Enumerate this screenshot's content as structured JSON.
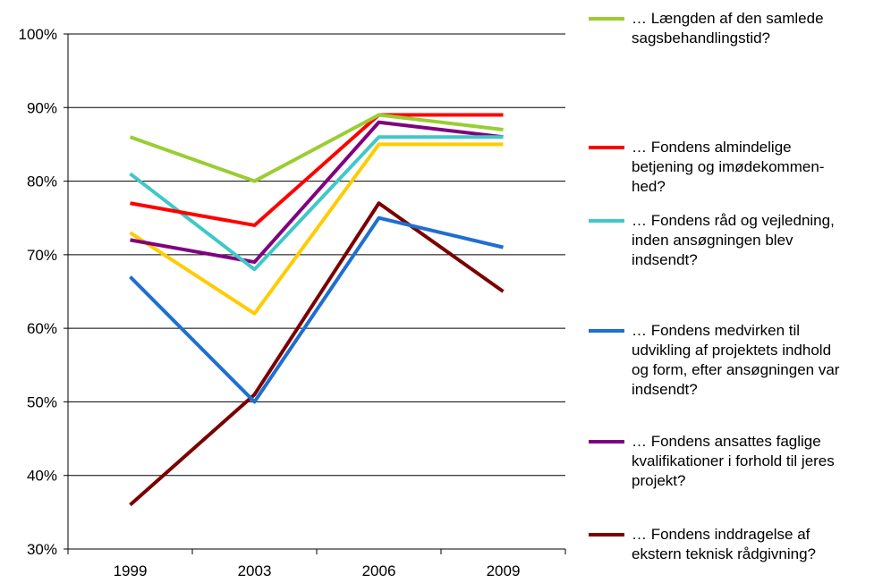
{
  "chart_data": {
    "type": "line",
    "categories": [
      "1999",
      "2003",
      "2006",
      "2009"
    ],
    "ylim": [
      30,
      100
    ],
    "yticks": [
      "30%",
      "40%",
      "50%",
      "60%",
      "70%",
      "80%",
      "90%",
      "100%"
    ],
    "grid": true,
    "legend_position": "right",
    "series": [
      {
        "name": "… Længden af den samlede\nsagsbehandlingstid?",
        "color": "#9acd32",
        "values": [
          86,
          80,
          89,
          87
        ]
      },
      {
        "name": "… Fondens almindelige\nbetjening og imødekommen-\nhed?",
        "color": "#ff0000",
        "values": [
          77,
          74,
          89,
          89
        ]
      },
      {
        "name": "… Fondens råd og vejledning,\ninden ansøgningen blev\nindsendt?",
        "color": "#40c8c8",
        "values": [
          81,
          68,
          86,
          86
        ]
      },
      {
        "name": "… Fondens medvirken til\nudvikling af projektets indhold\nog form, efter ansøgningen var\nindsendt?",
        "color": "#1f6fd0",
        "values": [
          67,
          50,
          75,
          71
        ]
      },
      {
        "name": "… Fondens ansattes faglige\nkvalifikationer i forhold til jeres\nprojekt?",
        "color": "#800080",
        "values": [
          72,
          69,
          88,
          86
        ]
      },
      {
        "name": "… Fondens inddragelse af\nekstern teknisk rådgivning?",
        "color": "#7b0000",
        "values": [
          36,
          51,
          77,
          65
        ]
      },
      {
        "name": "",
        "color": "#ffcc00",
        "values": [
          73,
          62,
          85,
          85
        ]
      }
    ]
  }
}
